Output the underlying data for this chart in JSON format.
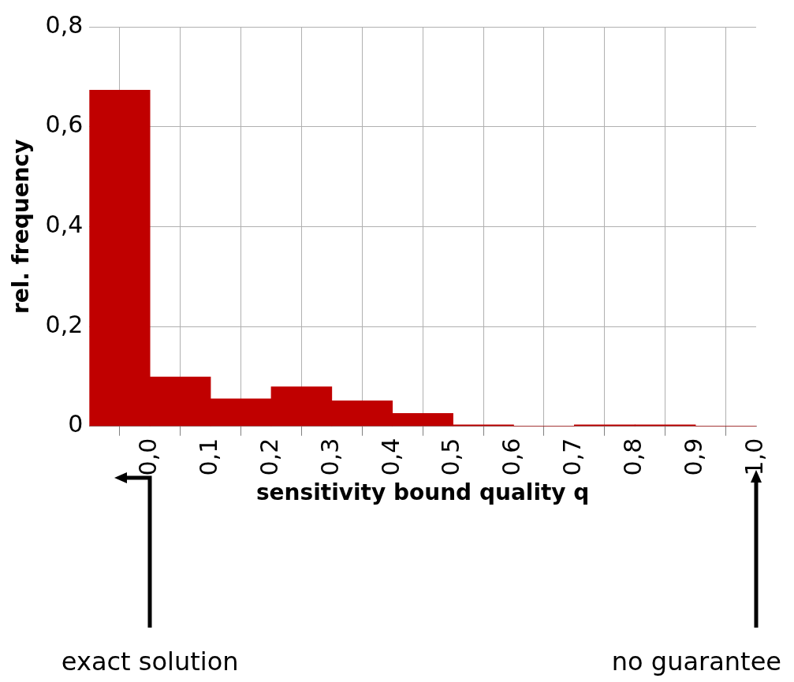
{
  "chart_data": {
    "type": "histogram",
    "xlabel": "sensitivity bound quality q",
    "ylabel": "rel. frequency",
    "bins": [
      -0.1,
      0.0,
      0.1,
      0.2,
      0.3,
      0.4,
      0.5,
      0.6,
      0.7,
      0.8,
      0.9,
      1.0
    ],
    "values": [
      0.673,
      0.099,
      0.055,
      0.079,
      0.051,
      0.026,
      0.003,
      0,
      0.003,
      0.003,
      0
    ],
    "color": "#c00000",
    "xlim": [
      -0.1,
      1.0
    ],
    "xticks": [
      {
        "value": 0.0,
        "label": "0,0"
      },
      {
        "value": 0.1,
        "label": "0,1"
      },
      {
        "value": 0.2,
        "label": "0,2"
      },
      {
        "value": 0.3,
        "label": "0,3"
      },
      {
        "value": 0.4,
        "label": "0,4"
      },
      {
        "value": 0.5,
        "label": "0,5"
      },
      {
        "value": 0.6,
        "label": "0,6"
      },
      {
        "value": 0.7,
        "label": "0,7"
      },
      {
        "value": 0.8,
        "label": "0,8"
      },
      {
        "value": 0.9,
        "label": "0,9"
      },
      {
        "value": 1.0,
        "label": "1,0"
      }
    ],
    "ylim": [
      0,
      0.8
    ],
    "yticks": [
      0,
      {
        "value": 0.2,
        "label": "0,2"
      },
      {
        "value": 0.4,
        "label": "0,4"
      },
      {
        "value": 0.6,
        "label": "0,6"
      },
      {
        "value": 0.8,
        "label": "0,8"
      }
    ],
    "grid": true,
    "annotations": [
      "exact solution",
      "no guarantee"
    ]
  }
}
